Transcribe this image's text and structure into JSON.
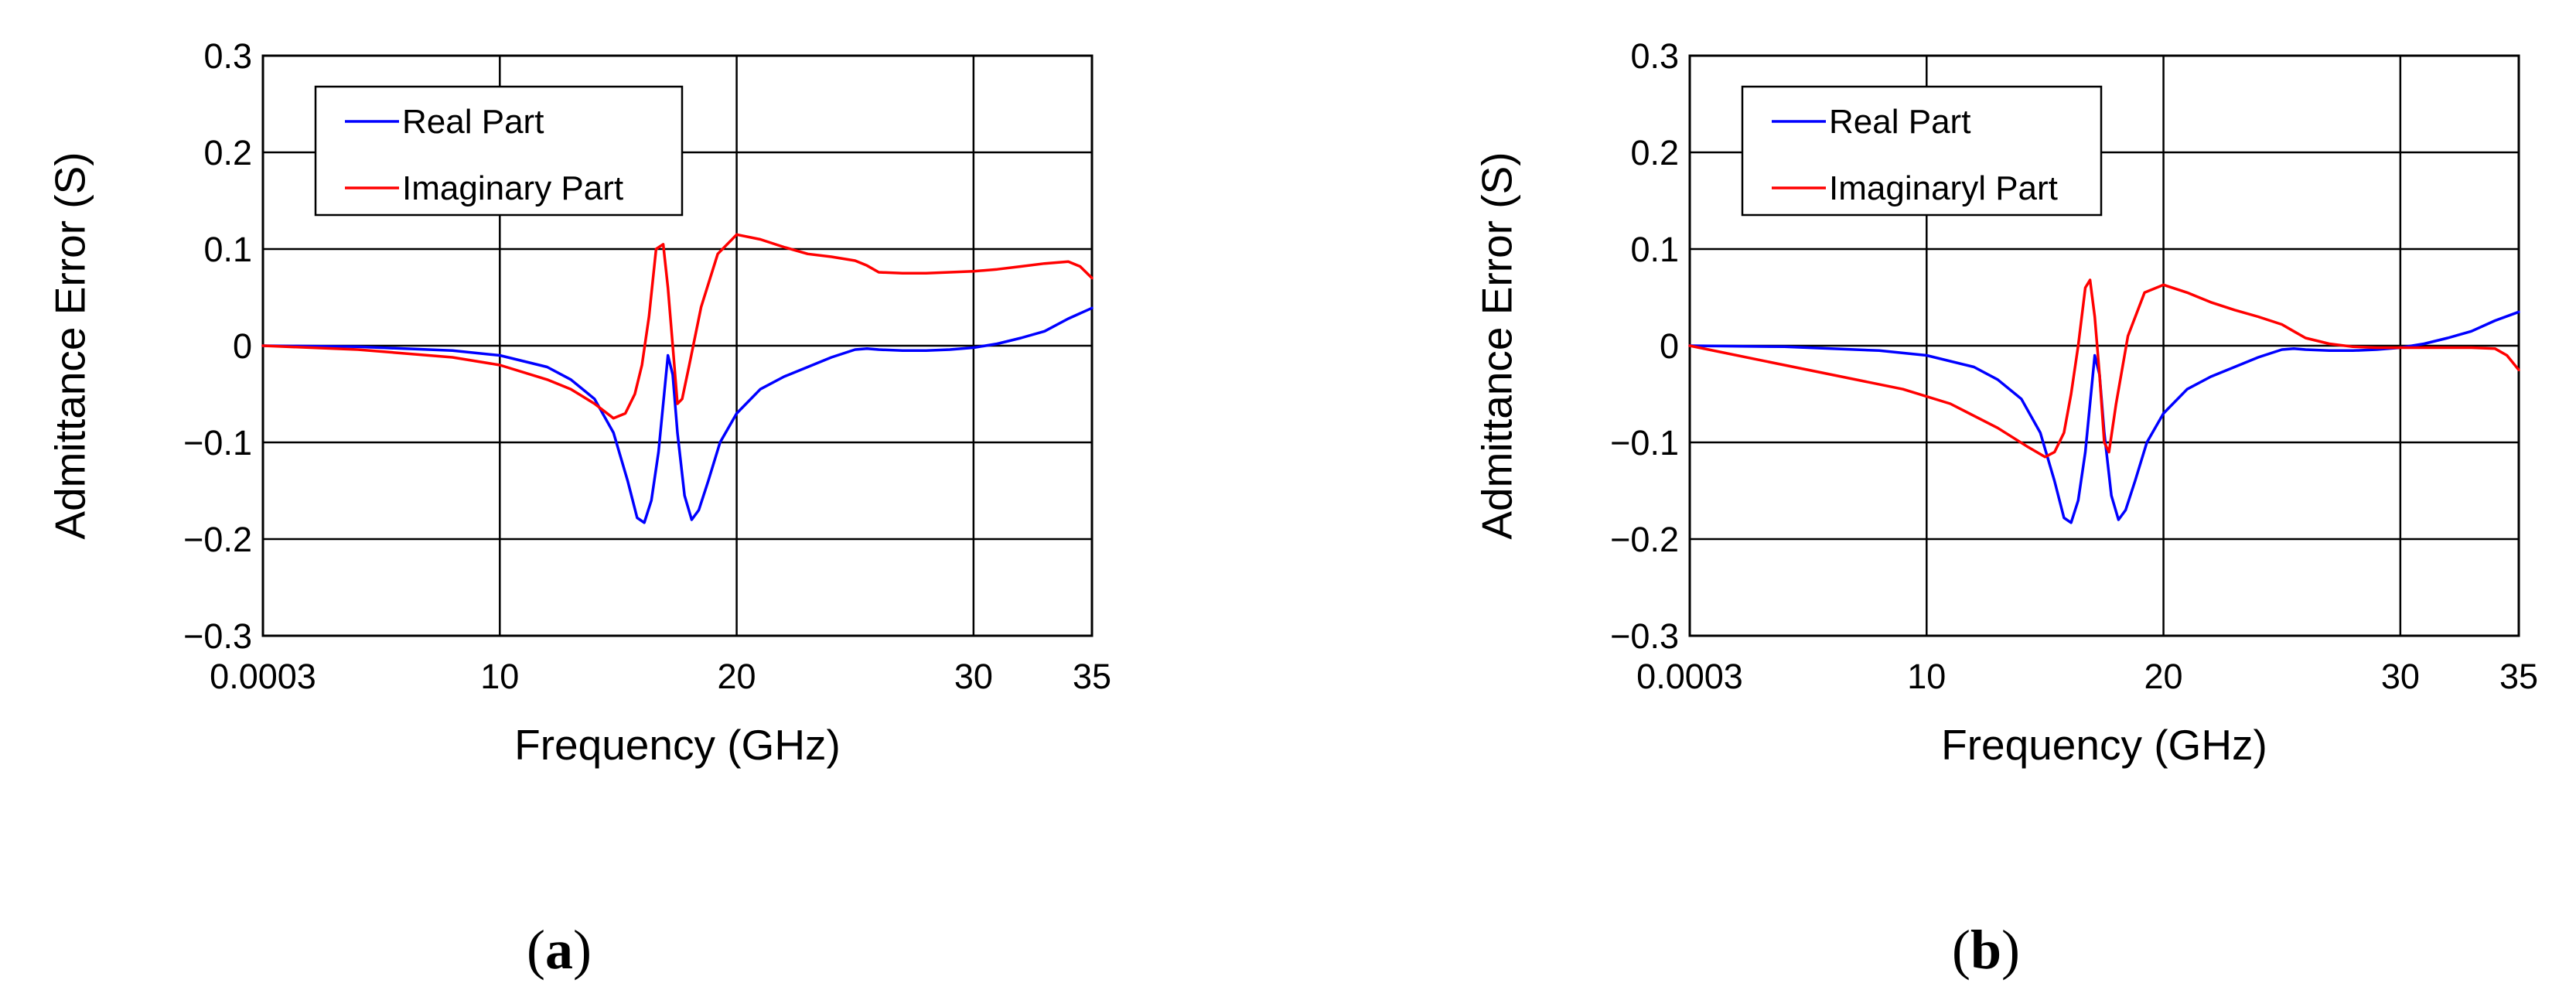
{
  "chart_data": [
    {
      "type": "line",
      "panel_label": "a",
      "xlabel": "Frequency (GHz)",
      "ylabel": "Admittance Error (S)",
      "xlim": [
        0,
        35
      ],
      "ylim": [
        -0.3,
        0.3
      ],
      "x_ticks": [
        0,
        10,
        20,
        30,
        35
      ],
      "x_tick_labels": [
        "0.0003",
        "10",
        "20",
        "30",
        "35"
      ],
      "y_ticks": [
        0.3,
        0.2,
        0.1,
        0,
        -0.1,
        -0.2,
        -0.3
      ],
      "y_tick_labels": [
        "0.3",
        "0.2",
        "0.1",
        "0",
        "−0.1",
        "−0.2",
        "−0.3"
      ],
      "grid": true,
      "legend": "top-left",
      "series": [
        {
          "name": "Real Part",
          "color": "#0000ff",
          "x": [
            0,
            4,
            8,
            10,
            12,
            13,
            14,
            14.8,
            15.4,
            15.8,
            16.1,
            16.4,
            16.7,
            16.9,
            17.1,
            17.3,
            17.5,
            17.8,
            18.1,
            18.4,
            18.8,
            19.3,
            20,
            21,
            22,
            23,
            24,
            25,
            25.5,
            26,
            27,
            28,
            29,
            30,
            31,
            32,
            33,
            34,
            35
          ],
          "values": [
            0,
            -0.001,
            -0.005,
            -0.01,
            -0.022,
            -0.035,
            -0.055,
            -0.09,
            -0.14,
            -0.178,
            -0.183,
            -0.16,
            -0.11,
            -0.06,
            -0.01,
            -0.03,
            -0.09,
            -0.155,
            -0.18,
            -0.17,
            -0.14,
            -0.1,
            -0.07,
            -0.045,
            -0.032,
            -0.022,
            -0.012,
            -0.004,
            -0.003,
            -0.004,
            -0.005,
            -0.005,
            -0.004,
            -0.002,
            0.002,
            0.008,
            0.015,
            0.028,
            0.039
          ]
        },
        {
          "name": "Imaginary Part",
          "color": "#ff0000",
          "x": [
            0,
            4,
            8,
            10,
            12,
            13,
            14,
            14.8,
            15.3,
            15.7,
            16.0,
            16.3,
            16.6,
            16.9,
            17.1,
            17.3,
            17.5,
            17.7,
            18.0,
            18.5,
            19.2,
            20,
            21,
            22,
            23,
            24,
            25,
            25.5,
            26,
            27,
            28,
            29,
            30,
            31,
            32,
            33,
            34,
            34.5,
            35
          ],
          "values": [
            0,
            -0.004,
            -0.012,
            -0.02,
            -0.035,
            -0.045,
            -0.06,
            -0.075,
            -0.07,
            -0.05,
            -0.02,
            0.03,
            0.1,
            0.105,
            0.06,
            0.0,
            -0.06,
            -0.055,
            -0.02,
            0.04,
            0.095,
            0.115,
            0.11,
            0.102,
            0.095,
            0.092,
            0.088,
            0.083,
            0.076,
            0.075,
            0.075,
            0.076,
            0.077,
            0.079,
            0.082,
            0.085,
            0.087,
            0.082,
            0.07
          ]
        }
      ]
    },
    {
      "type": "line",
      "panel_label": "b",
      "xlabel": "Frequency (GHz)",
      "ylabel": "Admittance Error (S)",
      "xlim": [
        0,
        35
      ],
      "ylim": [
        -0.3,
        0.3
      ],
      "x_ticks": [
        0,
        10,
        20,
        30,
        35
      ],
      "x_tick_labels": [
        "0.0003",
        "10",
        "20",
        "30",
        "35"
      ],
      "y_ticks": [
        0.3,
        0.2,
        0.1,
        0,
        -0.1,
        -0.2,
        -0.3
      ],
      "y_tick_labels": [
        "0.3",
        "0.2",
        "0.1",
        "0",
        "−0.1",
        "−0.2",
        "−0.3"
      ],
      "grid": true,
      "legend": "top-left",
      "series": [
        {
          "name": "Real Part",
          "color": "#0000ff",
          "x": [
            0,
            4,
            8,
            10,
            12,
            13,
            14,
            14.8,
            15.4,
            15.8,
            16.1,
            16.4,
            16.7,
            16.9,
            17.1,
            17.3,
            17.5,
            17.8,
            18.1,
            18.4,
            18.8,
            19.3,
            20,
            21,
            22,
            23,
            24,
            25,
            25.5,
            26,
            27,
            28,
            29,
            30,
            31,
            32,
            33,
            34,
            35
          ],
          "values": [
            0,
            -0.001,
            -0.005,
            -0.01,
            -0.022,
            -0.035,
            -0.055,
            -0.09,
            -0.14,
            -0.178,
            -0.183,
            -0.16,
            -0.11,
            -0.06,
            -0.01,
            -0.03,
            -0.09,
            -0.155,
            -0.18,
            -0.17,
            -0.14,
            -0.1,
            -0.07,
            -0.045,
            -0.032,
            -0.022,
            -0.012,
            -0.004,
            -0.003,
            -0.004,
            -0.005,
            -0.005,
            -0.004,
            -0.002,
            0.002,
            0.008,
            0.015,
            0.026,
            0.035
          ]
        },
        {
          "name": "Imaginaryl Part",
          "color": "#ff0000",
          "x": [
            0,
            3,
            6,
            9,
            11,
            13,
            14.3,
            15,
            15.4,
            15.8,
            16.1,
            16.4,
            16.7,
            16.9,
            17.1,
            17.3,
            17.5,
            17.7,
            18.0,
            18.5,
            19.2,
            20,
            21,
            22,
            23,
            24,
            25,
            25.5,
            26,
            27,
            28,
            29,
            30,
            31,
            32,
            33,
            34,
            34.5,
            35
          ],
          "values": [
            0,
            -0.015,
            -0.03,
            -0.045,
            -0.06,
            -0.085,
            -0.105,
            -0.115,
            -0.11,
            -0.09,
            -0.05,
            0.0,
            0.06,
            0.068,
            0.03,
            -0.03,
            -0.1,
            -0.11,
            -0.06,
            0.01,
            0.055,
            0.063,
            0.055,
            0.045,
            0.037,
            0.03,
            0.022,
            0.015,
            0.008,
            0.002,
            -0.001,
            -0.002,
            -0.002,
            -0.002,
            -0.002,
            -0.002,
            -0.003,
            -0.01,
            -0.025
          ]
        }
      ]
    }
  ]
}
